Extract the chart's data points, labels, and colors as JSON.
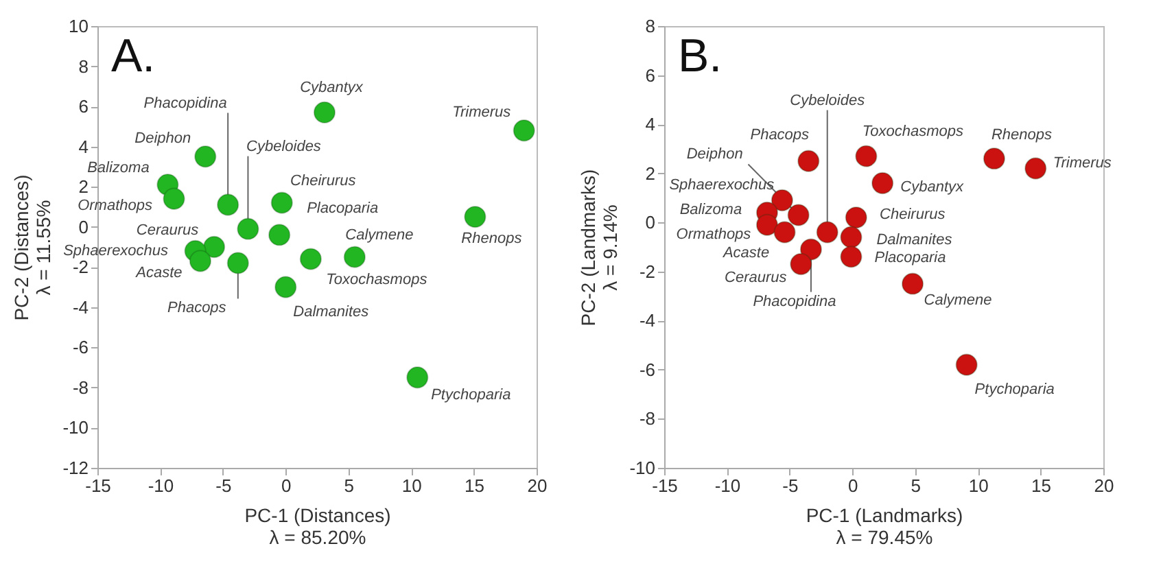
{
  "chart_data": [
    {
      "type": "scatter",
      "xlabel": "PC-1 (Distances)\nλ = 85.20%",
      "ylabel": "PC-2 (Distances)\nλ = 11.55%",
      "x": [
        3.1,
        19,
        -6.4,
        -9.4,
        -8.9,
        -4.6,
        -3.0,
        -0.3,
        -0.5,
        -5.7,
        -7.2,
        -6.8,
        -3.8,
        2.0,
        5.5,
        0,
        15.1,
        10.5
      ],
      "series": [
        {
          "color": "#22b622",
          "values": [
            5.7,
            4.8,
            3.5,
            2.1,
            1.4,
            1.1,
            -0.1,
            1.2,
            -0.4,
            -1.0,
            -1.2,
            -1.7,
            -1.8,
            -1.6,
            -1.5,
            -3.0,
            0.5,
            -7.5
          ]
        }
      ],
      "xlim": [
        -15,
        20
      ],
      "xticks": [
        -15,
        -10,
        -5,
        0,
        5,
        10,
        15,
        20
      ],
      "ylim": [
        -12,
        10
      ],
      "yticks": [
        -12,
        -10,
        -8,
        -6,
        -4,
        -2,
        0,
        2,
        4,
        6,
        8,
        10
      ],
      "marker": "circle",
      "grid": false,
      "annotations": [
        "A.",
        {
          "text": "Cybantyx",
          "x": 3.1,
          "y": 5.7
        },
        {
          "text": "Trimerus",
          "x": 19,
          "y": 4.8
        },
        {
          "text": "Deiphon",
          "x": -6.4,
          "y": 3.5
        },
        {
          "text": "Balizoma",
          "x": -9.4,
          "y": 2.1
        },
        {
          "text": "Ormathops",
          "x": -8.9,
          "y": 1.4
        },
        {
          "text": "Phacopidina",
          "x": -4.6,
          "y": 1.1
        },
        {
          "text": "Cybeloides",
          "x": -3.0,
          "y": -0.1
        },
        {
          "text": "Cheirurus",
          "x": -0.3,
          "y": 1.2
        },
        {
          "text": "Placoparia",
          "x": -0.5,
          "y": -0.4
        },
        {
          "text": "Ceraurus",
          "x": -5.7,
          "y": -1.0
        },
        {
          "text": "Sphaerexochus",
          "x": -7.2,
          "y": -1.2
        },
        {
          "text": "Acaste",
          "x": -6.8,
          "y": -1.7
        },
        {
          "text": "Phacops",
          "x": -3.8,
          "y": -1.8
        },
        {
          "text": "Toxochasmops",
          "x": 2.0,
          "y": -1.6
        },
        {
          "text": "Calymene",
          "x": 5.5,
          "y": -1.5
        },
        {
          "text": "Dalmanites",
          "x": 0,
          "y": -3.0
        },
        {
          "text": "Rhenops",
          "x": 15.1,
          "y": 0.5
        },
        {
          "text": "Ptychoparia",
          "x": 10.5,
          "y": -7.5
        }
      ]
    },
    {
      "type": "scatter",
      "xlabel": "PC-1 (Landmarks)\nλ = 79.45%",
      "ylabel": "PC-2 (Landmarks)\nλ = 9.14%",
      "x": [
        -3.5,
        1.1,
        11.3,
        14.6,
        2.4,
        -5.6,
        -6.8,
        -6.8,
        -4.3,
        -5.4,
        -2.0,
        0.3,
        -0.1,
        -0.1,
        -3.3,
        -4.1,
        4.8,
        9.1
      ],
      "series": [
        {
          "color": "#cc1111",
          "values": [
            2.5,
            2.7,
            2.6,
            2.2,
            1.6,
            0.9,
            0.4,
            -0.1,
            0.3,
            -0.4,
            -0.4,
            0.2,
            -0.6,
            -1.4,
            -1.1,
            -1.7,
            -2.5,
            -5.8
          ]
        }
      ],
      "xlim": [
        -15,
        20
      ],
      "xticks": [
        -15,
        -10,
        -5,
        0,
        5,
        10,
        15,
        20
      ],
      "ylim": [
        -10,
        8
      ],
      "yticks": [
        -10,
        -8,
        -6,
        -4,
        -2,
        0,
        2,
        4,
        6,
        8
      ],
      "marker": "circle",
      "grid": false,
      "annotations": [
        "B.",
        {
          "text": "Phacops",
          "x": -3.5,
          "y": 2.5
        },
        {
          "text": "Toxochasmops",
          "x": 1.1,
          "y": 2.7
        },
        {
          "text": "Rhenops",
          "x": 11.3,
          "y": 2.6
        },
        {
          "text": "Trimerus",
          "x": 14.6,
          "y": 2.2
        },
        {
          "text": "Cybantyx",
          "x": 2.4,
          "y": 1.6
        },
        {
          "text": "Sphaerexochus",
          "x": -5.6,
          "y": 0.9
        },
        {
          "text": "Balizoma",
          "x": -6.8,
          "y": 0.4
        },
        {
          "text": "Ormathops",
          "x": -6.8,
          "y": -0.1
        },
        {
          "text": "Deiphon",
          "x": -4.3,
          "y": 0.3
        },
        {
          "text": "Acaste",
          "x": -5.4,
          "y": -0.4
        },
        {
          "text": "Cybeloides",
          "x": -2.0,
          "y": -0.4
        },
        {
          "text": "Cheirurus",
          "x": 0.3,
          "y": 0.2
        },
        {
          "text": "Dalmanites",
          "x": -0.1,
          "y": -0.6
        },
        {
          "text": "Placoparia",
          "x": -0.1,
          "y": -1.4
        },
        {
          "text": "Phacopidina",
          "x": -3.3,
          "y": -1.1
        },
        {
          "text": "Ceraurus",
          "x": -4.1,
          "y": -1.7
        },
        {
          "text": "Calymene",
          "x": 4.8,
          "y": -2.5
        },
        {
          "text": "Ptychoparia",
          "x": 9.1,
          "y": -5.8
        }
      ]
    }
  ]
}
